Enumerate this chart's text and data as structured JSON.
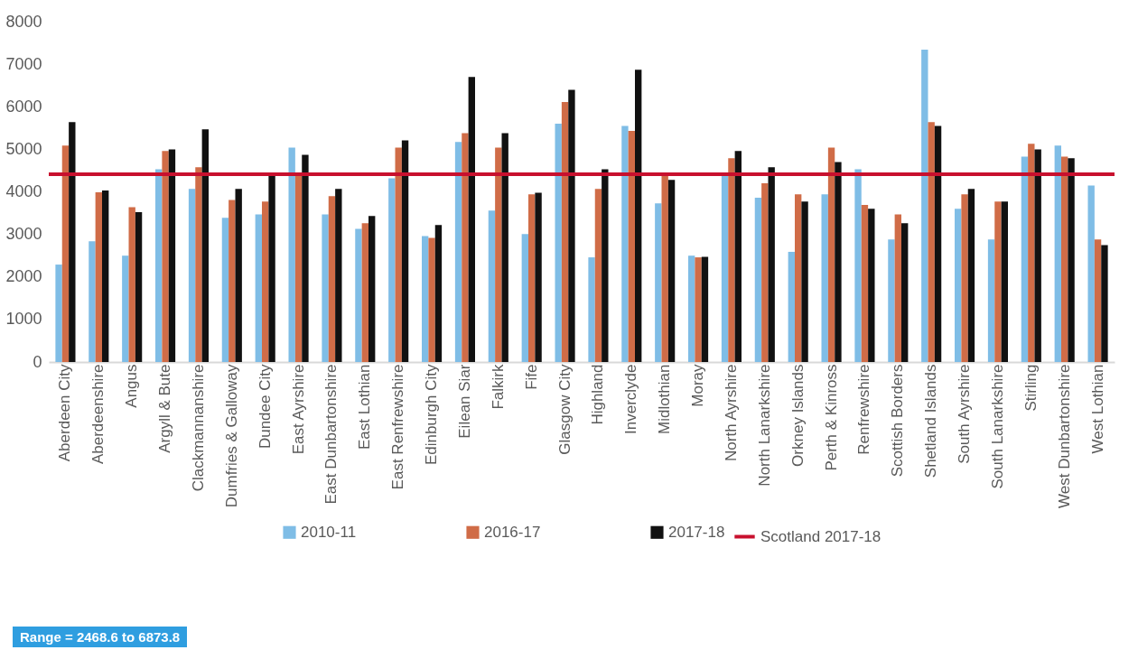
{
  "chart_data": {
    "type": "bar",
    "categories": [
      "Aberdeen City",
      "Aberdeenshire",
      "Angus",
      "Argyll & Bute",
      "Clackmannanshire",
      "Dumfries & Galloway",
      "Dundee City",
      "East Ayrshire",
      "East Dunbartonshire",
      "East Lothian",
      "East Renfrewshire",
      "Edinburgh City",
      "Eilean Siar",
      "Falkirk",
      "Fife",
      "Glasgow City",
      "Highland",
      "Inverclyde",
      "Midlothian",
      "Moray",
      "North Ayrshire",
      "North Lanarkshire",
      "Orkney Islands",
      "Perth & Kinross",
      "Renfrewshire",
      "Scottish Borders",
      "Shetland Islands",
      "South Ayrshire",
      "South Lanarkshire",
      "Stirling",
      "West Dunbartonshire",
      "West Lothian"
    ],
    "series": [
      {
        "name": "2010-11",
        "color": "#7fbde6",
        "values": [
          2290,
          2840,
          2500,
          4530,
          4070,
          3390,
          3470,
          5040,
          3470,
          3130,
          4320,
          2960,
          5170,
          3560,
          3010,
          5600,
          2460,
          5550,
          3730,
          2500,
          4400,
          3860,
          2590,
          3940,
          4530,
          2880,
          7340,
          3600,
          2880,
          4830,
          5090,
          4150
        ]
      },
      {
        "name": "2016-17",
        "color": "#d06c47",
        "values": [
          5090,
          3990,
          3640,
          4960,
          4580,
          3810,
          3770,
          4400,
          3900,
          3260,
          5040,
          2920,
          5380,
          5040,
          3940,
          6110,
          4070,
          5430,
          4400,
          2460,
          4790,
          4200,
          3940,
          5040,
          3690,
          3470,
          5640,
          3940,
          3770,
          5130,
          4830,
          2880
        ]
      },
      {
        "name": "2017-18",
        "color": "#111111",
        "values": [
          5640,
          4030,
          3520,
          5000,
          5470,
          4070,
          4370,
          4870,
          4070,
          3430,
          5210,
          3220,
          6700,
          5380,
          3980,
          6400,
          4530,
          6870,
          4280,
          2470,
          4960,
          4580,
          3770,
          4700,
          3600,
          3260,
          5550,
          4070,
          3770,
          5000,
          4790,
          2750
        ]
      }
    ],
    "ylim": [
      0,
      8000
    ],
    "yticks": [
      0,
      1000,
      2000,
      3000,
      4000,
      5000,
      6000,
      7000,
      8000
    ],
    "ref_lines": [
      {
        "axis": "y",
        "value": 4415,
        "label": "Scotland 2017-18",
        "color": "#c8102e"
      }
    ],
    "legend": "bottom",
    "annotations": [
      "Range = 2468.6 to 6873.8"
    ]
  }
}
